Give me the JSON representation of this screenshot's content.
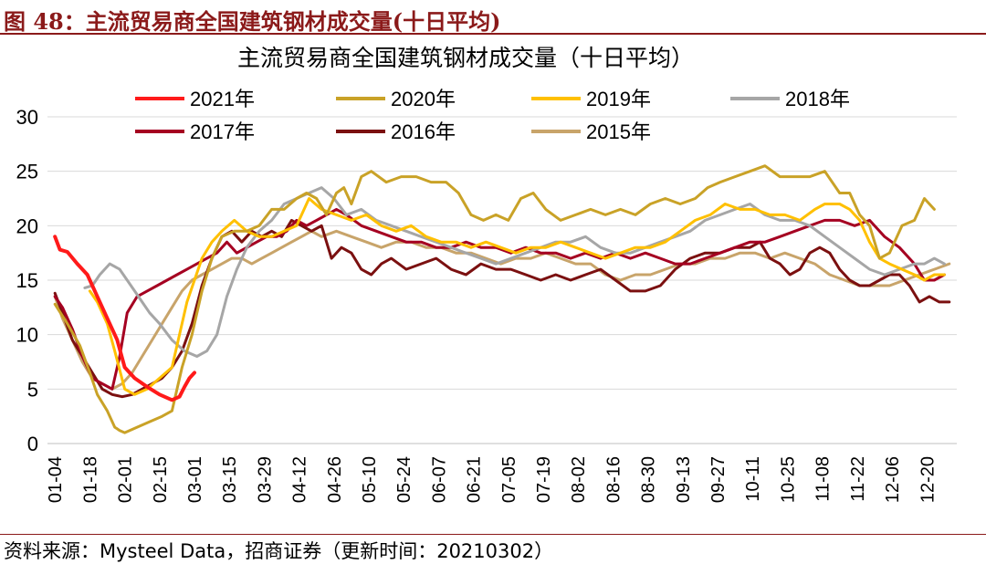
{
  "figure": {
    "label": "图 48：主流贸易商全国建筑钢材成交量(十日平均)",
    "source": "资料来源：Mysteel Data，招商证券（更新时间：20210302）"
  },
  "colors": {
    "header": "#8B1A1A",
    "grid": "#d9d9d9"
  },
  "chart_data": {
    "type": "line",
    "title": "主流贸易商全国建筑钢材成交量（十日平均）",
    "ylim": [
      0,
      30
    ],
    "yticks": [
      0,
      5,
      10,
      15,
      20,
      25,
      30
    ],
    "xlim": [
      0,
      365
    ],
    "x_tick_labels": [
      "01-04",
      "01-18",
      "02-01",
      "02-15",
      "03-01",
      "03-15",
      "03-29",
      "04-12",
      "04-26",
      "05-10",
      "05-24",
      "06-07",
      "06-21",
      "07-05",
      "07-19",
      "08-02",
      "08-16",
      "08-30",
      "09-13",
      "09-27",
      "10-11",
      "10-25",
      "11-08",
      "11-22",
      "12-06",
      "12-20"
    ],
    "x_tick_days": [
      3,
      17,
      31,
      45,
      59,
      73,
      87,
      101,
      115,
      129,
      143,
      157,
      171,
      185,
      199,
      213,
      227,
      241,
      255,
      269,
      283,
      297,
      311,
      325,
      339,
      353
    ],
    "grid": "horizontal",
    "legend": "top",
    "series": [
      {
        "name": "2021年",
        "color": "#FF1A1A",
        "width": 4,
        "x": [
          3,
          5,
          8,
          12,
          16,
          20,
          24,
          28,
          31,
          35,
          40,
          45,
          50,
          53,
          55,
          57,
          59
        ],
        "y": [
          19.0,
          17.8,
          17.6,
          16.5,
          15.5,
          13.5,
          11.5,
          9.5,
          7.0,
          6.0,
          5.2,
          4.5,
          4.0,
          4.3,
          5.2,
          6.0,
          6.5
        ]
      },
      {
        "name": "2020年",
        "color": "#C9A227",
        "width": 3,
        "x": [
          3,
          8,
          13,
          17,
          20,
          24,
          27,
          29,
          31,
          36,
          41,
          46,
          50,
          54,
          58,
          62,
          66,
          70,
          75,
          80,
          85,
          90,
          95,
          100,
          104,
          108,
          112,
          116,
          119,
          122,
          126,
          130,
          136,
          142,
          148,
          154,
          160,
          165,
          170,
          175,
          180,
          185,
          190,
          195,
          200,
          206,
          212,
          218,
          224,
          230,
          236,
          242,
          248,
          254,
          260,
          265,
          270,
          276,
          282,
          288,
          294,
          300,
          306,
          312,
          318,
          322,
          326,
          330,
          334,
          338,
          343,
          348,
          352,
          356
        ],
        "y": [
          12.8,
          11.0,
          9.0,
          6.5,
          4.5,
          3.0,
          1.5,
          1.2,
          1.0,
          1.5,
          2.0,
          2.5,
          3.0,
          7.0,
          10.0,
          14.0,
          17.0,
          19.0,
          19.5,
          19.5,
          20.0,
          21.5,
          21.5,
          22.5,
          23.0,
          22.5,
          21.0,
          23.0,
          23.5,
          22.0,
          24.5,
          25.0,
          24.0,
          24.5,
          24.5,
          24.0,
          24.0,
          23.0,
          21.0,
          20.5,
          21.0,
          20.5,
          22.5,
          23.0,
          21.5,
          20.5,
          21.0,
          21.5,
          21.0,
          21.5,
          21.0,
          22.0,
          22.5,
          22.0,
          22.5,
          23.5,
          24.0,
          24.5,
          25.0,
          25.5,
          24.5,
          24.5,
          24.5,
          25.0,
          23.0,
          23.0,
          21.0,
          20.0,
          17.0,
          17.5,
          20.0,
          20.5,
          22.5,
          21.5
        ]
      },
      {
        "name": "2019年",
        "color": "#FFC000",
        "width": 3,
        "x": [
          17,
          20,
          24,
          27,
          31,
          35,
          40,
          45,
          50,
          53,
          56,
          59,
          62,
          66,
          70,
          75,
          80,
          85,
          90,
          95,
          100,
          105,
          110,
          116,
          122,
          128,
          134,
          140,
          146,
          152,
          158,
          164,
          170,
          176,
          182,
          188,
          194,
          200,
          206,
          212,
          218,
          224,
          230,
          236,
          242,
          248,
          254,
          260,
          266,
          272,
          278,
          284,
          290,
          296,
          302,
          308,
          312,
          318,
          322,
          326,
          330,
          334,
          338,
          343,
          348,
          352,
          356,
          360
        ],
        "y": [
          14.0,
          13.0,
          11.0,
          8.5,
          5.0,
          4.5,
          5.0,
          6.0,
          7.0,
          10.0,
          13.0,
          15.0,
          17.0,
          18.5,
          19.5,
          20.5,
          19.5,
          19.0,
          19.0,
          19.5,
          20.0,
          22.5,
          21.5,
          21.0,
          20.5,
          21.0,
          20.0,
          19.5,
          20.0,
          19.0,
          18.5,
          18.5,
          18.0,
          18.5,
          18.0,
          17.5,
          18.0,
          18.0,
          18.5,
          18.0,
          17.5,
          17.0,
          17.5,
          18.0,
          18.0,
          18.5,
          19.5,
          20.5,
          21.0,
          22.0,
          21.5,
          21.5,
          21.0,
          21.0,
          20.5,
          21.5,
          22.0,
          22.0,
          21.5,
          20.5,
          18.5,
          17.0,
          16.5,
          16.0,
          15.5,
          15.0,
          15.5,
          15.5
        ]
      },
      {
        "name": "2018年",
        "color": "#A6A6A6",
        "width": 3,
        "x": [
          15,
          18,
          21,
          25,
          29,
          32,
          35,
          38,
          41,
          45,
          50,
          55,
          60,
          64,
          68,
          72,
          76,
          80,
          85,
          90,
          95,
          100,
          105,
          110,
          115,
          120,
          126,
          132,
          138,
          144,
          150,
          156,
          162,
          168,
          174,
          180,
          186,
          192,
          198,
          204,
          210,
          216,
          222,
          228,
          234,
          240,
          246,
          252,
          258,
          264,
          270,
          276,
          282,
          288,
          294,
          300,
          306,
          312,
          318,
          324,
          330,
          336,
          342,
          348,
          352,
          356,
          360
        ],
        "y": [
          14.3,
          14.5,
          15.5,
          16.5,
          16.0,
          15.0,
          14.0,
          13.0,
          12.0,
          11.0,
          9.5,
          8.5,
          8.0,
          8.5,
          10.0,
          13.5,
          16.0,
          18.0,
          19.5,
          20.5,
          22.0,
          22.5,
          23.0,
          23.5,
          22.5,
          21.0,
          21.5,
          20.5,
          20.0,
          19.5,
          19.0,
          18.5,
          18.0,
          17.5,
          17.0,
          16.5,
          17.0,
          17.5,
          18.0,
          18.5,
          18.5,
          19.0,
          18.0,
          17.5,
          17.5,
          18.0,
          18.5,
          19.0,
          19.5,
          20.5,
          21.0,
          21.5,
          22.0,
          21.0,
          20.5,
          20.5,
          20.0,
          19.0,
          18.0,
          17.0,
          16.0,
          15.5,
          16.0,
          16.5,
          16.5,
          17.0,
          16.5
        ]
      },
      {
        "name": "2017年",
        "color": "#A50021",
        "width": 3,
        "x": [
          3,
          6,
          10,
          14,
          18,
          22,
          26,
          29,
          32,
          36,
          40,
          44,
          48,
          52,
          56,
          60,
          64,
          68,
          72,
          76,
          80,
          84,
          88,
          92,
          96,
          100,
          104,
          108,
          112,
          116,
          120,
          126,
          132,
          138,
          144,
          150,
          156,
          162,
          168,
          174,
          180,
          186,
          192,
          198,
          204,
          210,
          216,
          222,
          228,
          234,
          240,
          246,
          252,
          258,
          264,
          270,
          276,
          282,
          288,
          294,
          300,
          306,
          312,
          318,
          324,
          330,
          336,
          342,
          348,
          352,
          356,
          360
        ],
        "y": [
          13.5,
          12.5,
          10.5,
          8.0,
          6.0,
          5.5,
          5.0,
          8.0,
          12.0,
          13.5,
          14.0,
          14.5,
          15.0,
          15.5,
          16.0,
          16.5,
          17.0,
          17.5,
          18.5,
          17.5,
          18.0,
          18.5,
          19.0,
          19.0,
          19.5,
          20.5,
          20.0,
          20.5,
          21.0,
          21.5,
          21.0,
          20.0,
          19.5,
          19.0,
          18.5,
          18.5,
          18.0,
          18.0,
          18.5,
          18.0,
          18.0,
          17.5,
          18.0,
          17.5,
          17.5,
          17.0,
          17.5,
          17.0,
          17.5,
          17.0,
          17.5,
          17.0,
          16.5,
          16.5,
          17.0,
          17.5,
          18.0,
          18.5,
          18.5,
          19.0,
          19.5,
          20.0,
          20.5,
          20.5,
          20.0,
          20.5,
          19.0,
          18.0,
          16.5,
          15.0,
          15.0,
          15.5
        ]
      },
      {
        "name": "2016年",
        "color": "#7B1010",
        "width": 3,
        "x": [
          3,
          6,
          10,
          14,
          18,
          22,
          26,
          30,
          34,
          38,
          42,
          46,
          50,
          54,
          58,
          62,
          66,
          70,
          74,
          78,
          82,
          86,
          90,
          94,
          98,
          102,
          106,
          110,
          114,
          118,
          122,
          126,
          130,
          134,
          138,
          144,
          150,
          156,
          162,
          168,
          174,
          180,
          186,
          192,
          198,
          204,
          210,
          216,
          222,
          228,
          234,
          240,
          246,
          252,
          258,
          264,
          270,
          276,
          282,
          286,
          290,
          294,
          298,
          302,
          306,
          310,
          314,
          318,
          322,
          326,
          330,
          334,
          338,
          342,
          346,
          350,
          354,
          358,
          362
        ],
        "y": [
          13.8,
          12.0,
          9.5,
          8.0,
          6.5,
          5.0,
          4.5,
          4.3,
          4.5,
          5.0,
          5.5,
          6.0,
          7.0,
          8.5,
          11.0,
          14.5,
          17.0,
          19.0,
          19.5,
          18.5,
          19.5,
          19.0,
          19.5,
          19.0,
          20.5,
          20.0,
          19.5,
          20.0,
          17.0,
          18.0,
          17.5,
          16.0,
          15.5,
          16.5,
          17.0,
          16.0,
          16.5,
          17.0,
          16.0,
          15.5,
          16.5,
          16.0,
          16.0,
          15.5,
          15.0,
          15.5,
          15.0,
          15.5,
          16.0,
          15.0,
          14.0,
          14.0,
          14.5,
          16.0,
          17.0,
          17.5,
          17.5,
          18.0,
          18.0,
          18.5,
          17.0,
          16.5,
          15.5,
          16.0,
          17.5,
          18.0,
          17.5,
          16.0,
          15.0,
          14.5,
          14.5,
          15.0,
          15.5,
          15.5,
          14.5,
          13.0,
          13.5,
          13.0,
          13.0
        ]
      },
      {
        "name": "2015年",
        "color": "#C8A46A",
        "width": 3,
        "x": [
          3,
          6,
          10,
          14,
          18,
          22,
          26,
          30,
          34,
          38,
          42,
          46,
          50,
          54,
          58,
          62,
          66,
          70,
          74,
          78,
          82,
          86,
          90,
          94,
          98,
          102,
          106,
          110,
          116,
          122,
          128,
          134,
          140,
          146,
          152,
          158,
          164,
          170,
          176,
          182,
          188,
          194,
          200,
          206,
          212,
          218,
          224,
          230,
          236,
          242,
          248,
          254,
          260,
          266,
          272,
          278,
          284,
          290,
          296,
          302,
          308,
          314,
          320,
          326,
          332,
          338,
          344,
          350,
          356,
          362
        ],
        "y": [
          13.5,
          11.5,
          9.5,
          7.5,
          6.0,
          5.5,
          5.0,
          5.5,
          6.5,
          8.0,
          9.5,
          11.0,
          12.5,
          14.0,
          15.0,
          15.5,
          16.0,
          16.5,
          17.0,
          17.0,
          16.5,
          17.0,
          17.5,
          18.0,
          18.5,
          19.0,
          19.5,
          19.0,
          19.5,
          19.0,
          18.5,
          18.0,
          18.5,
          18.5,
          18.0,
          18.0,
          17.5,
          17.5,
          17.0,
          16.5,
          17.0,
          17.0,
          17.5,
          17.0,
          16.5,
          16.5,
          15.5,
          15.0,
          15.5,
          15.5,
          16.0,
          16.5,
          16.5,
          17.0,
          17.0,
          17.5,
          17.5,
          17.0,
          17.5,
          17.0,
          16.5,
          15.5,
          15.0,
          14.5,
          14.5,
          14.5,
          15.0,
          15.5,
          16.0,
          16.5
        ]
      }
    ]
  }
}
